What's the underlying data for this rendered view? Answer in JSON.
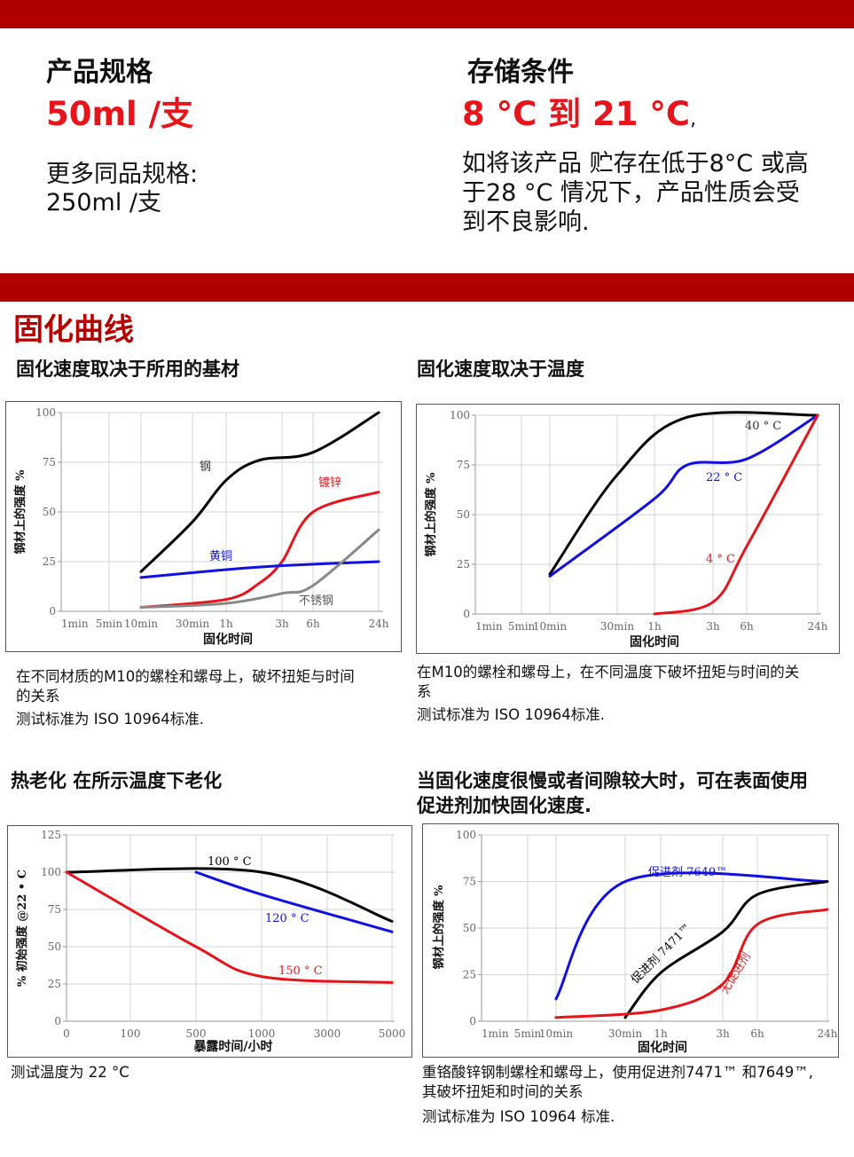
{
  "spec": {
    "title": "产品规格",
    "value": "50ml /支",
    "more_label": "更多同品规格:",
    "more_value": "250ml /支"
  },
  "storage": {
    "title": "存储条件",
    "value": "8 °C 到 21 °C",
    "value_suffix": ",",
    "note_lines": [
      "如将该产品 贮存在低于8°C 或高",
      "于28 °C 情况下，产品性质会受",
      "到不良影响."
    ]
  },
  "section_title": "固化曲线",
  "colors": {
    "band": "#b10000",
    "accent_red": "#e8141b",
    "blue": "#1010e0",
    "gray": "#888888",
    "black": "#000000"
  },
  "panels": {
    "substrate": {
      "heading": "固化速度取决于所用的基材",
      "caption_lines": [
        "在不同材质的M10的螺栓和螺母上，破坏扭矩与时间",
        "的关系"
      ],
      "standard": "测试标准为 ISO 10964标准."
    },
    "temperature": {
      "heading": "固化速度取决于温度",
      "caption_lines": [
        "在M10的螺栓和螺母上，在不同温度下破坏扭矩与时间的关",
        "系"
      ],
      "standard": "测试标准为 ISO 10964标准."
    },
    "heat_aging": {
      "heading": "热老化 在所示温度下老化",
      "caption_lines": [
        "测试温度为 22 °C"
      ],
      "standard": ""
    },
    "activator": {
      "heading_lines": [
        "当固化速度很慢或者间隙较大时，可在表面使用",
        "促进剂加快固化速度."
      ],
      "caption_lines": [
        "重铬酸锌钢制螺栓和螺母上，使用促进剂7471™ 和7649™,",
        "其破坏扭矩和时间的关系"
      ],
      "standard": "测试标准为 ISO 10964 标准."
    }
  },
  "chart_data": [
    {
      "id": "substrate",
      "type": "line",
      "xlabel": "固化时间",
      "ylabel": "钢材上的强度 %",
      "x_ticks": [
        "1min",
        "5min",
        "10min",
        "30min",
        "1h",
        "3h",
        "6h",
        "24h"
      ],
      "y_ticks": [
        0,
        25,
        50,
        75,
        100
      ],
      "ylim": [
        0,
        100
      ],
      "grid": true,
      "series": [
        {
          "name": "钢",
          "color": "#000000",
          "points": [
            [
              "10min",
              20
            ],
            [
              "30min",
              45
            ],
            [
              "1h",
              66
            ],
            [
              "2h",
              76
            ],
            [
              "6h",
              80
            ],
            [
              "24h",
              100
            ]
          ]
        },
        {
          "name": "镀锌",
          "color": "#e8141b",
          "points": [
            [
              "10min",
              2
            ],
            [
              "1h",
              6
            ],
            [
              "2h",
              14
            ],
            [
              "3h",
              25
            ],
            [
              "6h",
              50
            ],
            [
              "24h",
              60
            ]
          ]
        },
        {
          "name": "黄铜",
          "color": "#1010e0",
          "points": [
            [
              "10min",
              17
            ],
            [
              "1h",
              21
            ],
            [
              "3h",
              23
            ],
            [
              "24h",
              25
            ]
          ]
        },
        {
          "name": "不锈钢",
          "color": "#888888",
          "points": [
            [
              "10min",
              2
            ],
            [
              "1h",
              4
            ],
            [
              "3h",
              9
            ],
            [
              "6h",
              13
            ],
            [
              "24h",
              41
            ]
          ]
        }
      ]
    },
    {
      "id": "temperature",
      "type": "line",
      "xlabel": "固化时间",
      "ylabel": "钢材上的强度 %",
      "x_ticks": [
        "1min",
        "5min",
        "10min",
        "30min",
        "1h",
        "3h",
        "6h",
        "24h"
      ],
      "y_ticks": [
        0,
        25,
        50,
        75,
        100
      ],
      "ylim": [
        0,
        100
      ],
      "grid": true,
      "series": [
        {
          "name": "40 ° C",
          "color": "#000000",
          "points": [
            [
              "10min",
              20
            ],
            [
              "30min",
              70
            ],
            [
              "2h",
              99
            ],
            [
              "24h",
              100
            ]
          ]
        },
        {
          "name": "22 ° C",
          "color": "#1010e0",
          "points": [
            [
              "10min",
              19
            ],
            [
              "1h",
              58
            ],
            [
              "2h",
              75
            ],
            [
              "6h",
              78
            ],
            [
              "24h",
              100
            ]
          ]
        },
        {
          "name": "4 ° C",
          "color": "#e8141b",
          "points": [
            [
              "1h",
              0
            ],
            [
              "3h",
              6
            ],
            [
              "6h",
              34
            ],
            [
              "24h",
              100
            ]
          ]
        }
      ]
    },
    {
      "id": "heat_aging",
      "type": "line",
      "xlabel": "暴露时间/小时",
      "ylabel": "% 初始强度 @22 • C",
      "x_ticks": [
        0,
        100,
        500,
        1000,
        3000,
        5000
      ],
      "y_ticks": [
        0,
        25,
        50,
        75,
        100,
        125
      ],
      "ylim": [
        0,
        125
      ],
      "grid": true,
      "series": [
        {
          "name": "100 ° C",
          "color": "#000000",
          "points": [
            [
              0,
              100
            ],
            [
              1000,
              100
            ],
            [
              5000,
              67
            ]
          ]
        },
        {
          "name": "120 ° C",
          "color": "#1010e0",
          "points": [
            [
              500,
              100
            ],
            [
              1000,
              85
            ],
            [
              5000,
              60
            ]
          ]
        },
        {
          "name": "150 ° C",
          "color": "#e8141b",
          "points": [
            [
              0,
              100
            ],
            [
              500,
              50
            ],
            [
              1000,
              30
            ],
            [
              5000,
              26
            ]
          ]
        }
      ]
    },
    {
      "id": "activator",
      "type": "line",
      "xlabel": "固化时间",
      "ylabel": "钢材上的强度 %",
      "x_ticks": [
        "1min",
        "5min",
        "10min",
        "30min",
        "1h",
        "3h",
        "6h",
        "24h"
      ],
      "y_ticks": [
        0,
        25,
        50,
        75,
        100
      ],
      "ylim": [
        0,
        100
      ],
      "grid": true,
      "series": [
        {
          "name": "促进剂 7649™",
          "color": "#1010e0",
          "points": [
            [
              "10min",
              12
            ],
            [
              "30min",
              75
            ],
            [
              "24h",
              75
            ]
          ]
        },
        {
          "name": "促进剂 7471™",
          "color": "#000000",
          "points": [
            [
              "30min",
              2
            ],
            [
              "1h",
              26
            ],
            [
              "3h",
              48
            ],
            [
              "6h",
              68
            ],
            [
              "24h",
              75
            ]
          ]
        },
        {
          "name": "无促进剂",
          "color": "#e8141b",
          "points": [
            [
              "10min",
              2
            ],
            [
              "1h",
              6
            ],
            [
              "3h",
              20
            ],
            [
              "6h",
              52
            ],
            [
              "24h",
              60
            ]
          ]
        }
      ]
    }
  ]
}
